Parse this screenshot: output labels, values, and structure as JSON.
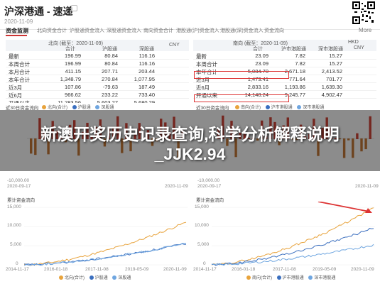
{
  "header": {
    "title": "沪深港通 - 速递",
    "date": "2020-11-09",
    "more_label": "More"
  },
  "tabs": [
    {
      "label": "资金监测",
      "active": true
    },
    {
      "label": "北向资金合计"
    },
    {
      "label": "沪股通资金流入"
    },
    {
      "label": "深股通资金流入"
    },
    {
      "label": "南向资金合计"
    },
    {
      "label": "港股通(沪)资金流入"
    },
    {
      "label": "港股通(深)资金流入"
    },
    {
      "label": "资金流向"
    }
  ],
  "north_table": {
    "header": {
      "label": "北向 (截至：2020-11-09)",
      "col1": "合计",
      "col2": "沪股通",
      "col3": "深股通",
      "currency": "CNY"
    },
    "rows": [
      {
        "label": "最新",
        "total": "196.99",
        "sh": "80.84",
        "sz": "116.16"
      },
      {
        "label": "本周合计",
        "total": "196.99",
        "sh": "80.84",
        "sz": "116.16"
      },
      {
        "label": "本月合计",
        "total": "411.15",
        "sh": "207.71",
        "sz": "203.44"
      },
      {
        "label": "本年合计",
        "total": "1,348.79",
        "sh": "270.84",
        "sz": "1,077.95"
      },
      {
        "label": "近3月",
        "total": "107.86",
        "sh": "-79.63",
        "sz": "187.49"
      },
      {
        "label": "近6月",
        "total": "966.62",
        "sh": "233.22",
        "sz": "733.40"
      },
      {
        "label": "开通以来",
        "total": "11,283.56",
        "sh": "5,603.27",
        "sz": "5,680.29"
      }
    ]
  },
  "south_table": {
    "header": {
      "label": "南向 (截至：2020-11-09)",
      "col1": "合计",
      "col2": "沪市港股通",
      "col3": "深市港股通",
      "currency": "HKD",
      "currency2": "CNY"
    },
    "rows": [
      {
        "label": "最新",
        "total": "23.09",
        "sh": "7.82",
        "sz": "15.27"
      },
      {
        "label": "本周合计",
        "total": "23.09",
        "sh": "7.82",
        "sz": "15.27"
      },
      {
        "label": "本年合计",
        "total": "5,084.70",
        "sh": "2,671.18",
        "sz": "2,413.52"
      },
      {
        "label": "近3月",
        "total": "1,473.41",
        "sh": "771.64",
        "sz": "701.77"
      },
      {
        "label": "近6月",
        "total": "2,833.16",
        "sh": "1,193.86",
        "sz": "1,639.30"
      },
      {
        "label": "开通以来",
        "total": "14,148.24",
        "sh": "9,245.77",
        "sz": "4,902.47"
      }
    ]
  },
  "charts": {
    "north_daily_caption": "近30日资金流向",
    "south_daily_caption": "近30日资金流向",
    "north_cum_caption": "累计资金流向",
    "south_cum_caption": "累计资金流向",
    "north_legend": [
      "北向(合计)",
      "沪股通",
      "深股通"
    ],
    "south_legend": [
      "南向(合计)",
      "沪市港股通",
      "深市港股通"
    ],
    "daily_x_labels": [
      "2020-09-17",
      "2020-11-09"
    ],
    "cum_x_labels_north": [
      "2014-11-17",
      "2016-01-18",
      "2017-11-08",
      "2019-05-09",
      "2020-11-09"
    ],
    "cum_x_labels_south": [
      "2014-11-17",
      "2016-01-18",
      "2017-11-08",
      "2019-05-09",
      "2020-11-09"
    ],
    "daily_y_north": [
      "",
      "-10,000.00"
    ],
    "daily_y_south": [
      "",
      "-10,000.00"
    ],
    "cum_y_north": [
      "15,000",
      "10,000",
      "5,000",
      "0"
    ],
    "cum_y_south": [
      "15,000",
      "10,000",
      "5,000",
      "0"
    ]
  },
  "overlay": {
    "line1": "新澳开奖历史记录查询,科学分析解释说明",
    "line2": "_JJK2.94"
  },
  "colors": {
    "up": "#d3463a",
    "down": "#3a9a4a",
    "line_total": "#e8a33c",
    "line_sh": "#3b6fbf",
    "line_sz": "#6fa6e0",
    "highlight": "#d33"
  }
}
